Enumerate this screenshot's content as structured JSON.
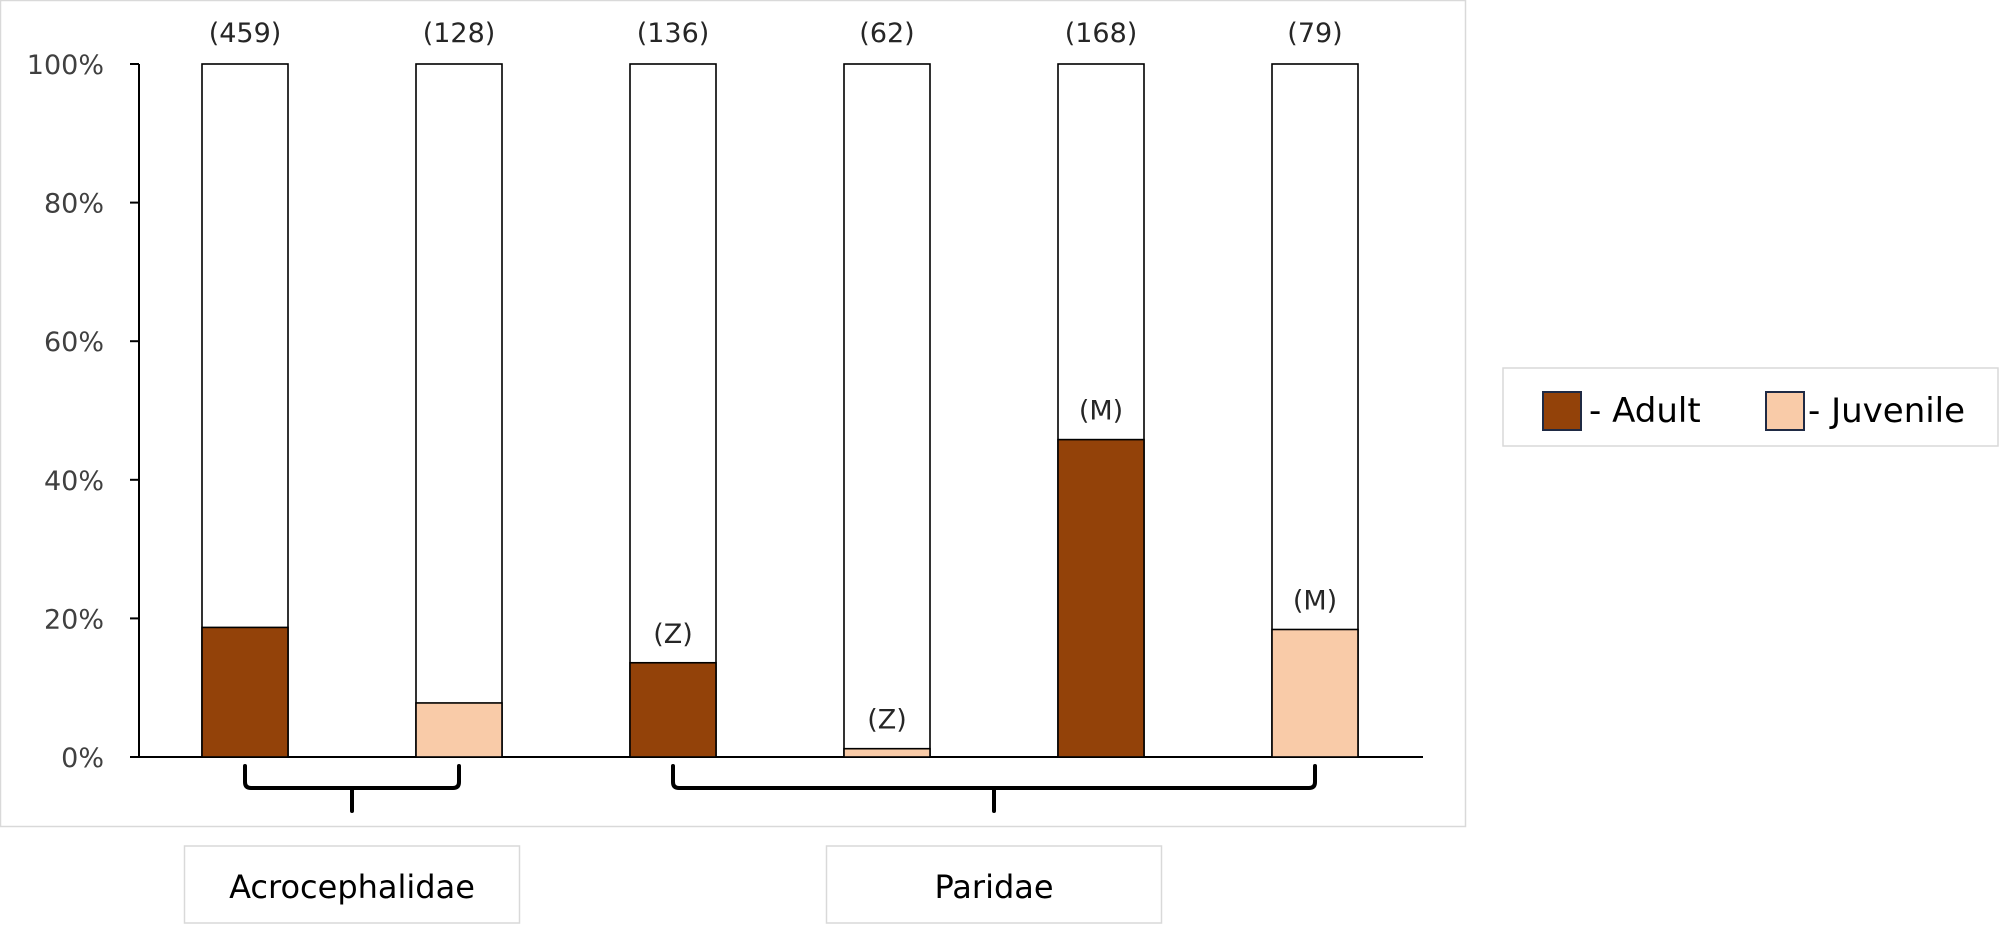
{
  "chart_data": {
    "type": "bar",
    "stacked_to": "100%",
    "y_ticks": [
      "0%",
      "20%",
      "40%",
      "60%",
      "80%",
      "100%"
    ],
    "ylim": [
      0,
      100
    ],
    "bars": [
      {
        "count_label": "(459)",
        "value": 18.7,
        "series": "Adult",
        "annotation": ""
      },
      {
        "count_label": "(128)",
        "value": 7.8,
        "series": "Juvenile",
        "annotation": ""
      },
      {
        "count_label": "(136)",
        "value": 13.6,
        "series": "Adult",
        "annotation": "(Z)"
      },
      {
        "count_label": "(62)",
        "value": 1.2,
        "series": "Juvenile",
        "annotation": "(Z)"
      },
      {
        "count_label": "(168)",
        "value": 45.8,
        "series": "Adult",
        "annotation": "(M)"
      },
      {
        "count_label": "(79)",
        "value": 18.4,
        "series": "Juvenile",
        "annotation": "(M)"
      }
    ],
    "series": [
      {
        "name": "- Adult",
        "key": "Adult",
        "color": "#934209"
      },
      {
        "name": "- Juvenile",
        "key": "Juvenile",
        "color": "#f9cba8"
      }
    ],
    "groups": [
      {
        "label": "Acrocephalidae",
        "first": 0,
        "last": 1
      },
      {
        "label": "Paridae",
        "first": 2,
        "last": 5
      }
    ],
    "legend_placement": "right",
    "grid": false
  }
}
